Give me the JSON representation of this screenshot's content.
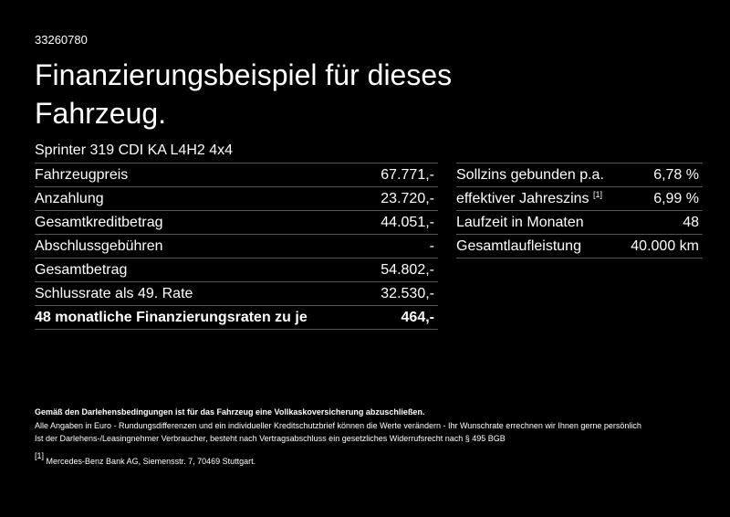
{
  "header": {
    "id": "33260780",
    "title_lines": [
      "Finanzierungsbeispiel für dieses",
      "Fahrzeug."
    ],
    "vehicle": "Sprinter 319 CDI KA L4H2 4x4"
  },
  "left_table": {
    "rows": [
      [
        "Fahrzeugpreis",
        "67.771,-"
      ],
      [
        "Anzahlung",
        "23.720,-"
      ],
      [
        "Gesamtkreditbetrag",
        "44.051,-"
      ],
      [
        "Abschlussgebühren",
        "-"
      ],
      [
        "Gesamtbetrag",
        "54.802,-"
      ],
      [
        "Schlussrate als 49. Rate",
        "32.530,-"
      ],
      [
        "48 monatliche Finanzierungsraten zu je",
        "464,-"
      ]
    ]
  },
  "right_table": {
    "rows": [
      {
        "label": "Sollzins gebunden p.a.",
        "value": "6,78 %"
      },
      {
        "label": "effektiver Jahreszins",
        "note": "[1]",
        "value": "6,99 %"
      },
      {
        "label": "Laufzeit in Monaten",
        "value": "48"
      },
      {
        "label": "Gesamtlaufleistung",
        "value": "40.000 km"
      }
    ]
  },
  "footer": {
    "bold_note": "Gemäß den Darlehensbedingungen ist für das Fahrzeug eine Vollkaskoversicherung abzuschließen.",
    "lines": [
      "Alle Angaben in Euro - Rundungsdifferenzen und ein individueller Kreditschutzbrief können die Werte verändern - Ihr Wunschrate errechnen wir Ihnen gerne persönlich",
      "Ist der Darlehens-/Leasingnehmer Verbraucher, besteht nach Vertragsabschluss ein gesetzliches Widerrufsrecht nach § 495 BGB"
    ],
    "footnote_marker": "[1]",
    "footnote": "Mercedes-Benz Bank AG, Siemensstr. 7, 70469 Stuttgart."
  }
}
